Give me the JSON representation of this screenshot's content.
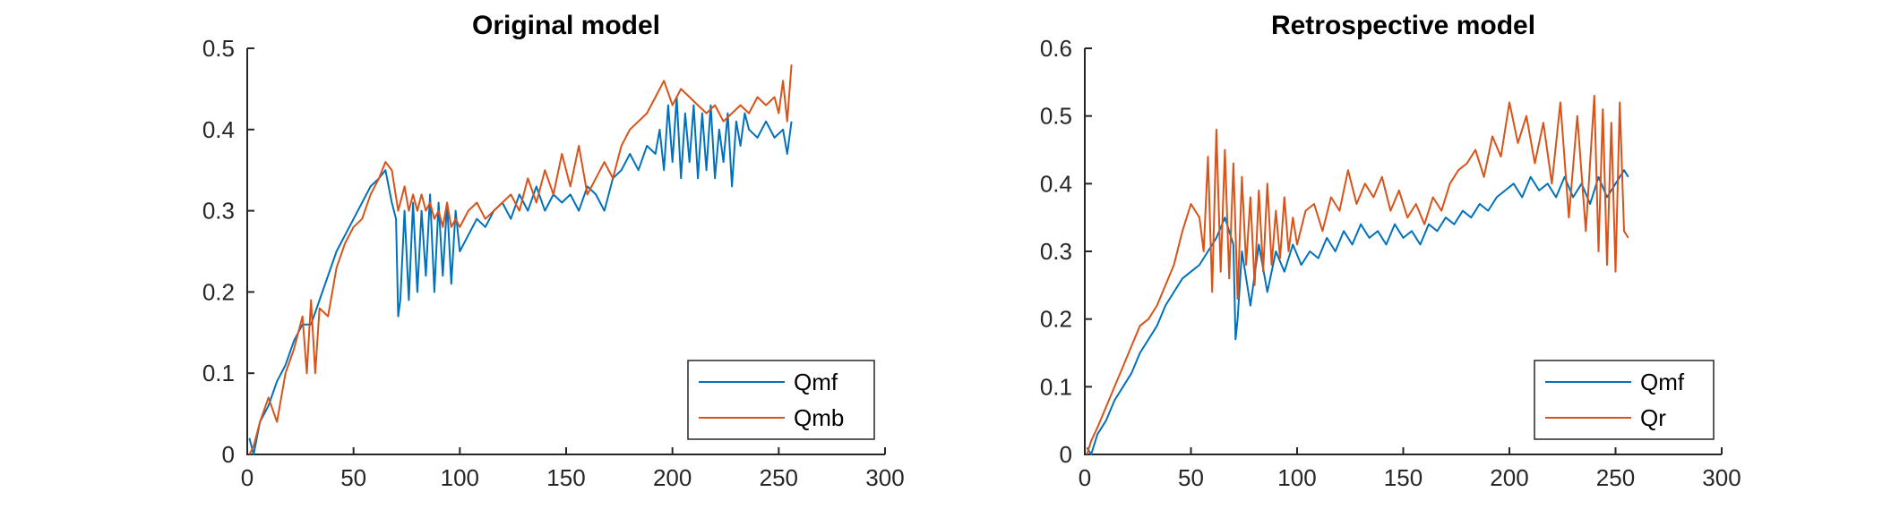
{
  "chart_data": [
    {
      "type": "line",
      "title": "Original model",
      "xlabel": "",
      "ylabel": "",
      "xlim": [
        0,
        300
      ],
      "ylim": [
        0,
        0.5
      ],
      "x_ticks": [
        "0",
        "50",
        "100",
        "150",
        "200",
        "250",
        "300"
      ],
      "y_ticks": [
        "0",
        "0.1",
        "0.2",
        "0.3",
        "0.4",
        "0.5"
      ],
      "legend_position": "bottom-right",
      "series": [
        {
          "name": "Qmf",
          "color": "#0072BD",
          "x": [
            1,
            3,
            6,
            10,
            14,
            18,
            22,
            26,
            30,
            34,
            38,
            42,
            46,
            50,
            54,
            58,
            62,
            65,
            68,
            70,
            71,
            72,
            74,
            76,
            78,
            80,
            82,
            84,
            86,
            88,
            90,
            92,
            94,
            96,
            98,
            100,
            104,
            108,
            112,
            116,
            120,
            124,
            128,
            132,
            136,
            140,
            144,
            148,
            152,
            156,
            160,
            164,
            168,
            172,
            176,
            180,
            184,
            188,
            192,
            194,
            196,
            198,
            200,
            202,
            204,
            206,
            208,
            210,
            212,
            214,
            216,
            218,
            220,
            222,
            224,
            226,
            228,
            230,
            232,
            234,
            236,
            240,
            244,
            248,
            252,
            254,
            256
          ],
          "y": [
            0.02,
            0.0,
            0.04,
            0.06,
            0.09,
            0.11,
            0.14,
            0.16,
            0.16,
            0.19,
            0.22,
            0.25,
            0.27,
            0.29,
            0.31,
            0.33,
            0.34,
            0.35,
            0.31,
            0.29,
            0.17,
            0.19,
            0.3,
            0.19,
            0.31,
            0.2,
            0.3,
            0.22,
            0.32,
            0.2,
            0.31,
            0.22,
            0.31,
            0.21,
            0.3,
            0.25,
            0.27,
            0.29,
            0.28,
            0.3,
            0.31,
            0.29,
            0.32,
            0.3,
            0.33,
            0.3,
            0.32,
            0.31,
            0.32,
            0.3,
            0.33,
            0.32,
            0.3,
            0.34,
            0.35,
            0.37,
            0.35,
            0.38,
            0.37,
            0.4,
            0.35,
            0.43,
            0.36,
            0.44,
            0.34,
            0.42,
            0.36,
            0.43,
            0.34,
            0.42,
            0.35,
            0.43,
            0.34,
            0.4,
            0.36,
            0.42,
            0.33,
            0.41,
            0.38,
            0.42,
            0.4,
            0.39,
            0.41,
            0.39,
            0.4,
            0.37,
            0.41
          ]
        },
        {
          "name": "Qmb",
          "color": "#D95319",
          "x": [
            1,
            3,
            6,
            10,
            14,
            18,
            22,
            26,
            28,
            30,
            32,
            34,
            38,
            42,
            46,
            50,
            54,
            58,
            62,
            65,
            68,
            71,
            74,
            76,
            78,
            80,
            82,
            84,
            86,
            88,
            90,
            92,
            94,
            96,
            98,
            100,
            104,
            108,
            112,
            116,
            120,
            124,
            128,
            132,
            136,
            140,
            144,
            148,
            152,
            156,
            160,
            164,
            168,
            172,
            176,
            180,
            184,
            188,
            192,
            196,
            200,
            204,
            208,
            212,
            216,
            220,
            224,
            228,
            232,
            236,
            240,
            244,
            248,
            250,
            252,
            254,
            256
          ],
          "y": [
            0.0,
            0.01,
            0.04,
            0.07,
            0.04,
            0.1,
            0.13,
            0.17,
            0.1,
            0.19,
            0.1,
            0.18,
            0.17,
            0.23,
            0.26,
            0.28,
            0.29,
            0.32,
            0.34,
            0.36,
            0.35,
            0.3,
            0.33,
            0.3,
            0.32,
            0.3,
            0.32,
            0.3,
            0.31,
            0.29,
            0.3,
            0.28,
            0.31,
            0.28,
            0.29,
            0.28,
            0.3,
            0.31,
            0.29,
            0.3,
            0.31,
            0.32,
            0.3,
            0.34,
            0.31,
            0.35,
            0.32,
            0.37,
            0.33,
            0.38,
            0.32,
            0.34,
            0.36,
            0.34,
            0.38,
            0.4,
            0.41,
            0.42,
            0.44,
            0.46,
            0.43,
            0.45,
            0.44,
            0.43,
            0.42,
            0.43,
            0.41,
            0.42,
            0.43,
            0.42,
            0.44,
            0.43,
            0.44,
            0.42,
            0.46,
            0.41,
            0.48
          ]
        }
      ]
    },
    {
      "type": "line",
      "title": "Retrospective model",
      "xlabel": "",
      "ylabel": "",
      "xlim": [
        0,
        300
      ],
      "ylim": [
        0,
        0.6
      ],
      "x_ticks": [
        "0",
        "50",
        "100",
        "150",
        "200",
        "250",
        "300"
      ],
      "y_ticks": [
        "0",
        "0.1",
        "0.2",
        "0.3",
        "0.4",
        "0.5",
        "0.6"
      ],
      "legend_position": "bottom-right",
      "series": [
        {
          "name": "Qmf",
          "color": "#0072BD",
          "x": [
            1,
            3,
            6,
            10,
            14,
            18,
            22,
            26,
            30,
            34,
            38,
            42,
            46,
            50,
            54,
            58,
            62,
            66,
            70,
            71,
            72,
            74,
            78,
            82,
            86,
            90,
            94,
            98,
            102,
            106,
            110,
            114,
            118,
            122,
            126,
            130,
            134,
            138,
            142,
            146,
            150,
            154,
            158,
            162,
            166,
            170,
            174,
            178,
            182,
            186,
            190,
            194,
            198,
            202,
            206,
            210,
            214,
            218,
            222,
            226,
            230,
            234,
            238,
            242,
            246,
            250,
            254,
            256
          ],
          "y": [
            0.01,
            0.0,
            0.03,
            0.05,
            0.08,
            0.1,
            0.12,
            0.15,
            0.17,
            0.19,
            0.22,
            0.24,
            0.26,
            0.27,
            0.28,
            0.3,
            0.32,
            0.35,
            0.31,
            0.17,
            0.2,
            0.3,
            0.22,
            0.31,
            0.24,
            0.3,
            0.27,
            0.31,
            0.28,
            0.3,
            0.29,
            0.32,
            0.3,
            0.33,
            0.31,
            0.34,
            0.32,
            0.33,
            0.31,
            0.34,
            0.32,
            0.33,
            0.31,
            0.34,
            0.33,
            0.35,
            0.34,
            0.36,
            0.35,
            0.37,
            0.36,
            0.38,
            0.39,
            0.4,
            0.38,
            0.41,
            0.39,
            0.4,
            0.38,
            0.41,
            0.38,
            0.4,
            0.37,
            0.41,
            0.38,
            0.4,
            0.42,
            0.41
          ]
        },
        {
          "name": "Qr",
          "color": "#D95319",
          "x": [
            1,
            3,
            6,
            10,
            14,
            18,
            22,
            26,
            30,
            34,
            38,
            42,
            46,
            50,
            54,
            56,
            58,
            60,
            62,
            64,
            66,
            68,
            70,
            72,
            74,
            76,
            78,
            80,
            82,
            84,
            86,
            88,
            90,
            92,
            94,
            96,
            98,
            100,
            104,
            108,
            112,
            116,
            120,
            124,
            128,
            132,
            136,
            140,
            144,
            148,
            152,
            156,
            160,
            164,
            168,
            172,
            176,
            180,
            184,
            188,
            192,
            196,
            200,
            204,
            208,
            212,
            216,
            220,
            224,
            228,
            232,
            236,
            240,
            242,
            244,
            246,
            248,
            250,
            252,
            254,
            256
          ],
          "y": [
            0.0,
            0.02,
            0.04,
            0.07,
            0.1,
            0.13,
            0.16,
            0.19,
            0.2,
            0.22,
            0.25,
            0.28,
            0.33,
            0.37,
            0.35,
            0.3,
            0.44,
            0.24,
            0.48,
            0.27,
            0.45,
            0.26,
            0.43,
            0.23,
            0.41,
            0.28,
            0.38,
            0.25,
            0.39,
            0.27,
            0.4,
            0.28,
            0.36,
            0.29,
            0.38,
            0.3,
            0.35,
            0.31,
            0.36,
            0.37,
            0.33,
            0.38,
            0.36,
            0.42,
            0.37,
            0.4,
            0.38,
            0.41,
            0.36,
            0.39,
            0.35,
            0.37,
            0.34,
            0.38,
            0.36,
            0.4,
            0.42,
            0.43,
            0.45,
            0.41,
            0.47,
            0.44,
            0.52,
            0.46,
            0.5,
            0.43,
            0.49,
            0.4,
            0.52,
            0.35,
            0.5,
            0.33,
            0.53,
            0.3,
            0.51,
            0.28,
            0.49,
            0.27,
            0.52,
            0.33,
            0.32
          ]
        }
      ]
    }
  ]
}
